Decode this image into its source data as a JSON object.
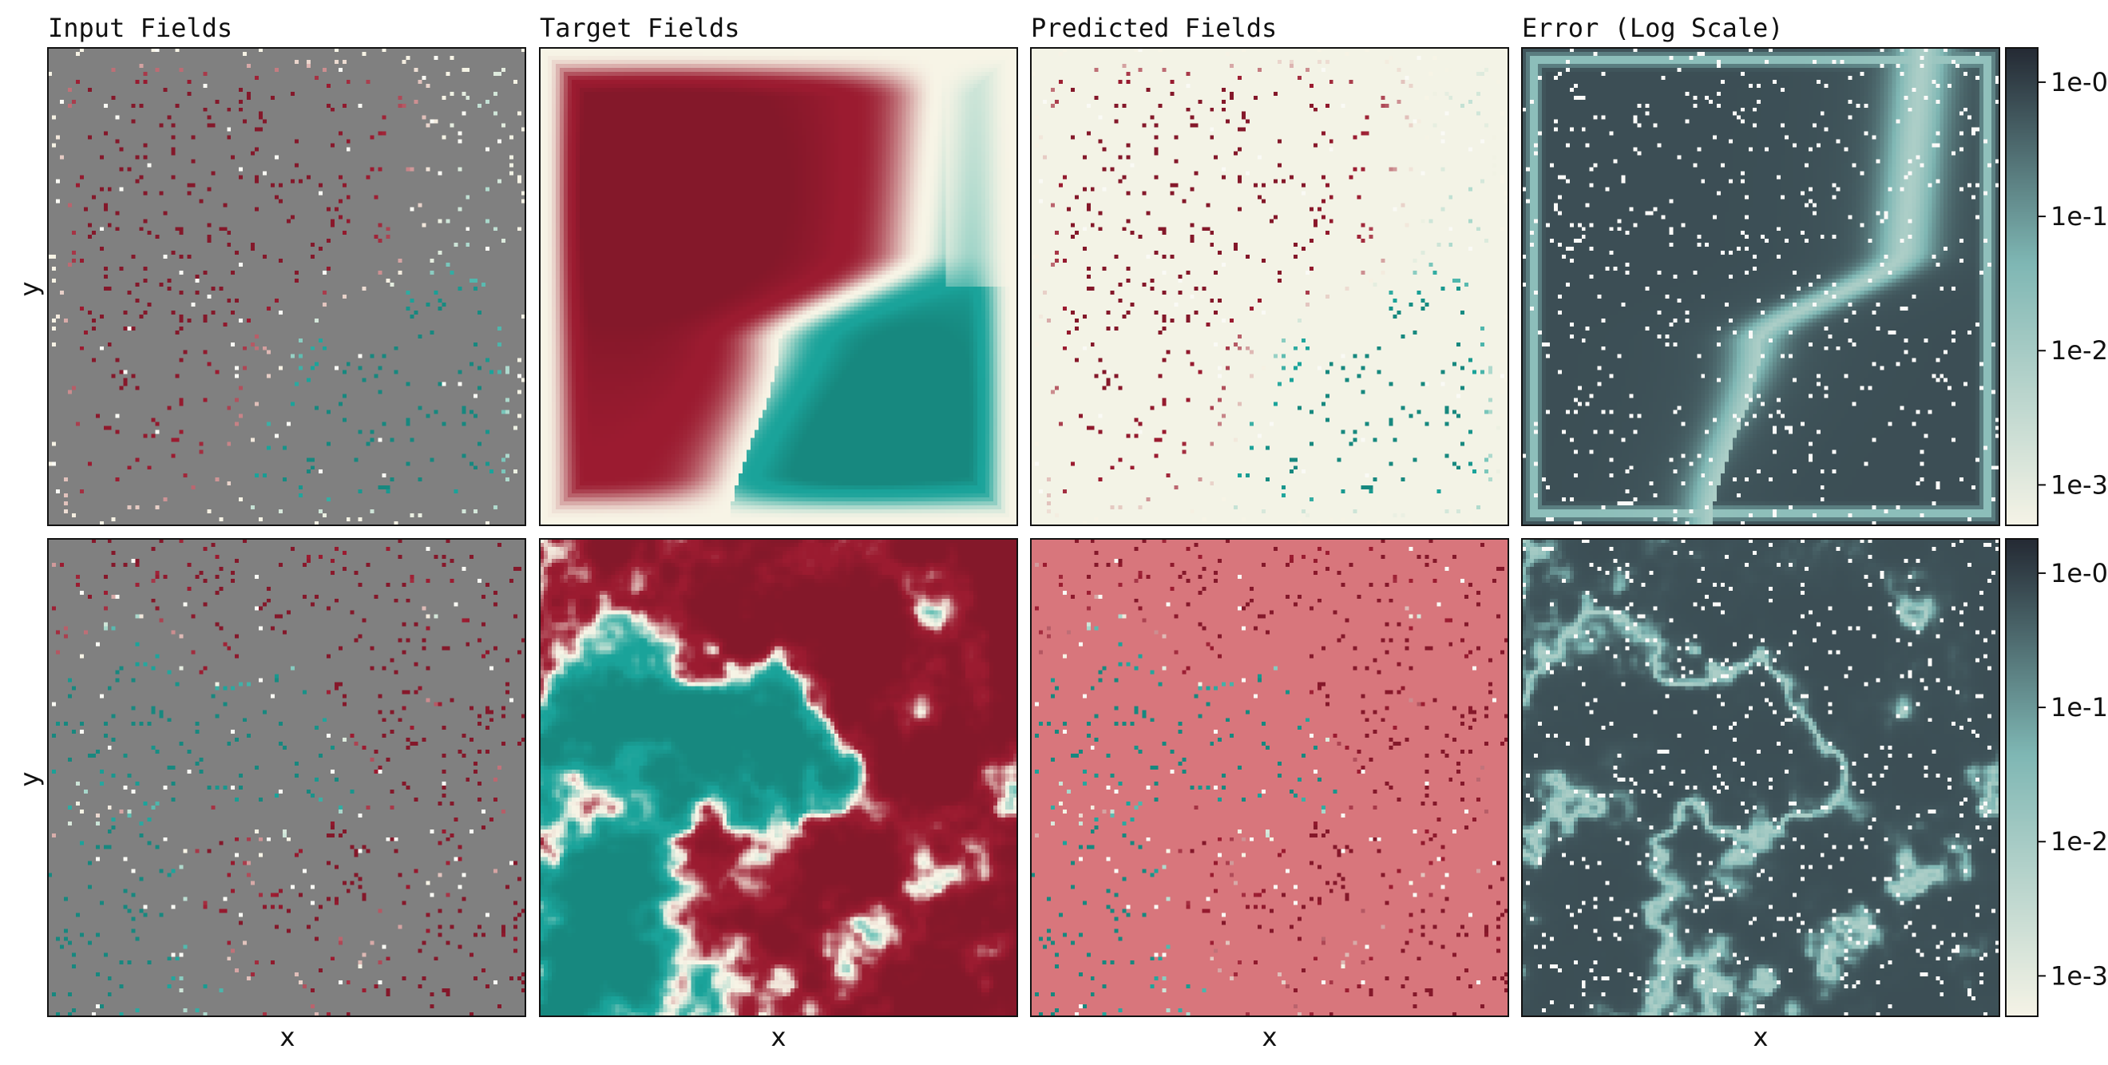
{
  "chart_data": {
    "type": "heatmap",
    "columns": [
      "Input Fields",
      "Target Fields",
      "Predicted Fields",
      "Error (Log Scale)"
    ],
    "xlabel": "x",
    "ylabel": "y",
    "rows": 2,
    "colorbar": {
      "scale": "log",
      "ticks": [
        "1e-0",
        "1e-1",
        "1e-2",
        "1e-3"
      ],
      "tick_values": [
        1,
        0.1,
        0.01,
        0.001
      ],
      "range": [
        0.0005,
        1.8
      ]
    },
    "colormap": {
      "field": {
        "negative": "#1aa39a",
        "mid": "#f7f4e6",
        "positive": "#9b1b30"
      },
      "masked": "#808080",
      "error": {
        "low": "#f5f3e6",
        "mid": "#7fb7b4",
        "high": "#252b35"
      }
    }
  }
}
